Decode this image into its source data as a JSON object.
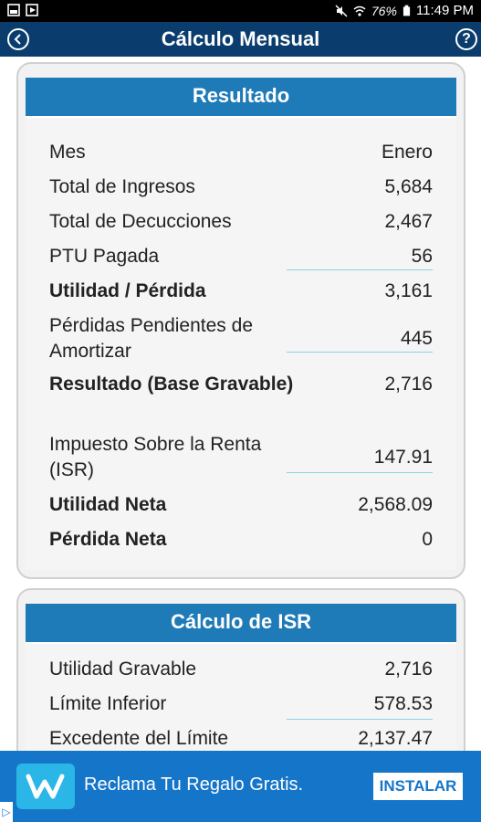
{
  "status_bar": {
    "battery": "76%",
    "time": "11:49 PM"
  },
  "app_bar": {
    "title": "Cálculo Mensual"
  },
  "result_card": {
    "header": "Resultado",
    "rows": [
      {
        "label": "Mes",
        "value": "Enero"
      },
      {
        "label": "Total de Ingresos",
        "value": "5,684"
      },
      {
        "label": "Total de Decucciones",
        "value": "2,467"
      },
      {
        "label": "PTU Pagada",
        "value": "56"
      },
      {
        "label": "Utilidad / Pérdida",
        "value": "3,161"
      },
      {
        "label": "Pérdidas Pendientes de Amortizar",
        "value": "445"
      },
      {
        "label": "Resultado (Base Gravable)",
        "value": "2,716"
      },
      {
        "label": "Impuesto Sobre la Renta (ISR)",
        "value": "147.91"
      },
      {
        "label": "Utilidad Neta",
        "value": "2,568.09"
      },
      {
        "label": "Pérdida Neta",
        "value": "0"
      }
    ]
  },
  "isr_card": {
    "header": "Cálculo de ISR",
    "rows": [
      {
        "label": "Utilidad Gravable",
        "value": "2,716"
      },
      {
        "label": "Límite Inferior",
        "value": "578.53"
      },
      {
        "label": "Excedente del Límite",
        "value": "2,137.47"
      }
    ]
  },
  "ad": {
    "text": "Reclama Tu Regalo Gratis.",
    "install_label": "INSTALAR"
  }
}
